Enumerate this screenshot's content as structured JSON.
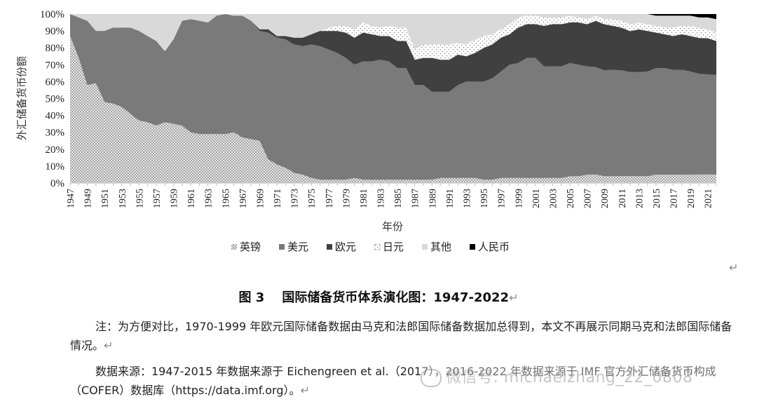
{
  "chart_data": {
    "type": "area",
    "stacked": true,
    "title": "",
    "xlabel": "年份",
    "ylabel": "外汇储备货币份额",
    "ylim": [
      0,
      100
    ],
    "y_ticks": [
      "0%",
      "10%",
      "20%",
      "30%",
      "40%",
      "50%",
      "60%",
      "70%",
      "80%",
      "90%",
      "100%"
    ],
    "x": [
      1947,
      1948,
      1949,
      1950,
      1951,
      1952,
      1953,
      1954,
      1955,
      1956,
      1957,
      1958,
      1959,
      1960,
      1961,
      1962,
      1963,
      1964,
      1965,
      1966,
      1967,
      1968,
      1969,
      1970,
      1971,
      1972,
      1973,
      1974,
      1975,
      1976,
      1977,
      1978,
      1979,
      1980,
      1981,
      1982,
      1983,
      1984,
      1985,
      1986,
      1987,
      1988,
      1989,
      1990,
      1991,
      1992,
      1993,
      1994,
      1995,
      1996,
      1997,
      1998,
      1999,
      2000,
      2001,
      2002,
      2003,
      2004,
      2005,
      2006,
      2007,
      2008,
      2009,
      2010,
      2011,
      2012,
      2013,
      2014,
      2015,
      2016,
      2017,
      2018,
      2019,
      2020,
      2021,
      2022
    ],
    "x_tick_labels": [
      "1947",
      "1949",
      "1951",
      "1953",
      "1955",
      "1957",
      "1959",
      "1961",
      "1963",
      "1965",
      "1967",
      "1969",
      "1971",
      "1973",
      "1975",
      "1977",
      "1979",
      "1981",
      "1983",
      "1985",
      "1987",
      "1989",
      "1991",
      "1993",
      "1995",
      "1997",
      "1999",
      "2001",
      "2003",
      "2005",
      "2007",
      "2009",
      "2011",
      "2013",
      "2015",
      "2017",
      "2019",
      "2021"
    ],
    "legend_position": "bottom",
    "series": [
      {
        "name": "英镑",
        "color": "#bdbdbd",
        "pattern": "dots",
        "values": [
          87,
          74,
          58,
          59,
          48,
          47,
          45,
          41,
          37,
          36,
          34,
          36,
          35,
          34,
          30,
          29,
          29,
          29,
          29,
          30,
          27,
          26,
          25,
          14,
          11,
          9,
          6,
          5,
          3,
          2,
          2,
          2,
          2,
          3,
          2,
          2,
          2,
          2,
          2,
          2,
          2,
          2,
          2,
          3,
          3,
          3,
          3,
          3,
          2,
          2,
          3,
          3,
          3,
          3,
          3,
          3,
          3,
          3,
          4,
          4,
          5,
          5,
          4,
          4,
          4,
          4,
          4,
          4,
          5,
          5,
          5,
          5,
          5,
          5,
          5,
          5
        ]
      },
      {
        "name": "美元",
        "color": "#7a7a7a",
        "pattern": "solid",
        "values": [
          13,
          24,
          38,
          31,
          42,
          45,
          47,
          51,
          53,
          51,
          50,
          42,
          50,
          62,
          67,
          67,
          66,
          70,
          71,
          69,
          72,
          70,
          65,
          75,
          75,
          76,
          76,
          76,
          79,
          79,
          77,
          75,
          72,
          67,
          70,
          70,
          71,
          70,
          66,
          66,
          56,
          56,
          52,
          51,
          51,
          55,
          57,
          57,
          58,
          60,
          63,
          67,
          68,
          71,
          71,
          66,
          66,
          66,
          67,
          66,
          64,
          63,
          62,
          63,
          62,
          61,
          61,
          62,
          63,
          63,
          62,
          62,
          61,
          59,
          58,
          59
        ]
      },
      {
        "name": "欧元",
        "color": "#404040",
        "pattern": "solid",
        "values": [
          0,
          0,
          0,
          0,
          0,
          0,
          0,
          0,
          0,
          0,
          0,
          0,
          0,
          0,
          0,
          0,
          0,
          0,
          0,
          0,
          0,
          0,
          1,
          2,
          1,
          2,
          4,
          5,
          6,
          9,
          11,
          13,
          15,
          16,
          17,
          16,
          14,
          15,
          16,
          16,
          15,
          16,
          20,
          19,
          19,
          18,
          15,
          17,
          20,
          20,
          20,
          18,
          21,
          20,
          20,
          24,
          25,
          25,
          24,
          25,
          25,
          27,
          27,
          26,
          25,
          24,
          25,
          24,
          21,
          20,
          20,
          21,
          21,
          21,
          21,
          20
        ]
      },
      {
        "name": "日元",
        "color": "#ffffff",
        "pattern": "dots-sparse",
        "values": [
          0,
          0,
          0,
          0,
          0,
          0,
          0,
          0,
          0,
          0,
          0,
          0,
          0,
          0,
          0,
          0,
          0,
          0,
          0,
          0,
          0,
          0,
          0,
          0,
          0,
          0,
          0,
          0,
          0,
          0,
          2,
          3,
          4,
          5,
          6,
          5,
          5,
          6,
          8,
          8,
          6,
          8,
          8,
          9,
          9,
          7,
          7,
          8,
          7,
          6,
          5,
          6,
          6,
          5,
          5,
          5,
          4,
          4,
          4,
          3,
          3,
          3,
          3,
          4,
          4,
          4,
          4,
          4,
          4,
          4,
          5,
          5,
          6,
          6,
          5,
          5
        ]
      },
      {
        "name": "其他",
        "color": "#d9d9d9",
        "pattern": "solid",
        "values": [
          0,
          2,
          4,
          10,
          10,
          8,
          8,
          8,
          10,
          13,
          16,
          22,
          15,
          4,
          3,
          4,
          5,
          1,
          0,
          1,
          1,
          4,
          9,
          9,
          13,
          13,
          14,
          14,
          12,
          10,
          8,
          7,
          7,
          9,
          5,
          7,
          8,
          7,
          8,
          8,
          21,
          18,
          18,
          18,
          18,
          17,
          18,
          15,
          13,
          12,
          9,
          6,
          2,
          1,
          1,
          2,
          2,
          2,
          1,
          2,
          3,
          1,
          3,
          3,
          4,
          6,
          5,
          6,
          6,
          7,
          7,
          6,
          6,
          6,
          7,
          8
        ]
      },
      {
        "name": "人民币",
        "color": "#000000",
        "pattern": "solid",
        "values": [
          0,
          0,
          0,
          0,
          0,
          0,
          0,
          0,
          0,
          0,
          0,
          0,
          0,
          0,
          0,
          0,
          0,
          0,
          0,
          0,
          0,
          0,
          0,
          0,
          0,
          0,
          0,
          0,
          0,
          0,
          0,
          0,
          0,
          0,
          0,
          0,
          0,
          0,
          0,
          0,
          0,
          0,
          0,
          0,
          0,
          0,
          0,
          0,
          0,
          0,
          0,
          0,
          0,
          0,
          0,
          0,
          0,
          0,
          0,
          0,
          0,
          0,
          0,
          0,
          0,
          0,
          0,
          0,
          1,
          1,
          1,
          1,
          1,
          2,
          2,
          3
        ]
      }
    ]
  },
  "caption": {
    "fig_no": "图 3",
    "text": "国际储备货币体系演化图：1947-2022",
    "mark": "↵"
  },
  "return_mark": "↵",
  "note": {
    "text": "注：为方便对比，1970-1999 年欧元国际储备数据由马克和法郎国际储备数据加总得到，本文不再展示同期马克和法郎国际储备情况。",
    "mark": "↵"
  },
  "source": {
    "text": "数据来源：1947-2015 年数据来源于 Eichengreen et al.（2017），2016-2022 年数据来源于 IMF 官方外汇储备货币构成（COFER）数据库（https://data.imf.org）。",
    "mark": "↵"
  },
  "watermark": {
    "text": "微信号: michaelzhang_22_0808"
  }
}
